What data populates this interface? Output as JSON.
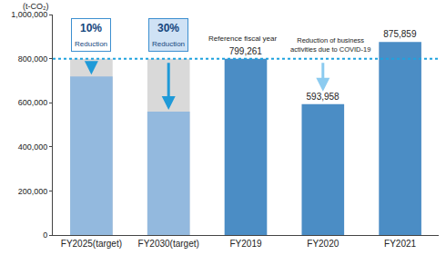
{
  "chart_data": {
    "type": "bar",
    "y_label": "(t-CO₂)",
    "categories": [
      "FY2019",
      "FY2020",
      "FY2021",
      "FY2025(target)",
      "FY2030(target)"
    ],
    "values": [
      799261,
      593958,
      875859,
      719335,
      559483
    ],
    "value_labels": [
      "799,261",
      "593,958",
      "875,859",
      null,
      null
    ],
    "colors": [
      "#4b8dc5",
      "#4b8dc5",
      "#4b8dc5",
      "#93b9de",
      "#93b9de"
    ],
    "ylim": [
      0,
      1000000
    ],
    "yticks": [
      0,
      {
        "value": 200000,
        "label": "200,000"
      },
      {
        "value": 400000,
        "label": "400,000"
      },
      {
        "value": 600000,
        "label": "600,000"
      },
      {
        "value": 800000,
        "label": "800,000"
      },
      {
        "value": 1000000,
        "label": "1,000,000"
      }
    ],
    "grid": false,
    "data_labels": true,
    "reference": {
      "value": 799261,
      "label": "Reference fiscal year",
      "category": "FY2019",
      "line_style": "dot"
    },
    "annotations": [
      {
        "category": "FY2020",
        "text": "Reduction of business\nactivities due to COVID-19",
        "kind": "note"
      },
      {
        "category": "FY2025(target)",
        "text": "10%\nReduction",
        "kind": "target"
      },
      {
        "category": "FY2030(target)",
        "text": "30%\nReduction",
        "kind": "target"
      }
    ]
  }
}
